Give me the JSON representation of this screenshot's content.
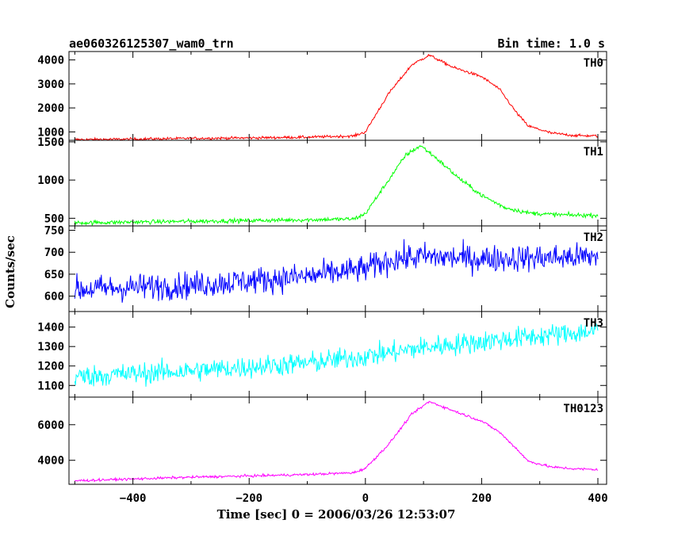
{
  "chart_data": {
    "type": "line",
    "title_left": "ae060326125307_wam0_trn",
    "title_right": "Bin time: 1.0 s",
    "xlabel": "Time [sec] 0 = 2006/03/26 12:53:07",
    "ylabel": "Counts/sec",
    "xlim": [
      -510,
      415
    ],
    "xticks": [
      -400,
      -200,
      0,
      200,
      400
    ],
    "xtick_labels": [
      "−400",
      "−200",
      "0",
      "200",
      "400"
    ],
    "panels": [
      {
        "name": "TH0",
        "color": "#ff0000",
        "ylim": [
          650,
          4350
        ],
        "yticks": [
          1000,
          2000,
          3000,
          4000
        ],
        "ytick_labels": [
          "1000",
          "2000",
          "3000",
          "4000"
        ],
        "noise": 40,
        "x": [
          -500,
          -400,
          -300,
          -200,
          -100,
          -20,
          0,
          40,
          80,
          110,
          150,
          200,
          230,
          260,
          280,
          320,
          360,
          400
        ],
        "values": [
          680,
          700,
          730,
          750,
          780,
          830,
          1000,
          2600,
          3800,
          4200,
          3700,
          3300,
          2800,
          1800,
          1250,
          950,
          850,
          830
        ]
      },
      {
        "name": "TH1",
        "color": "#00ff00",
        "ylim": [
          400,
          1520
        ],
        "yticks": [
          500,
          1000,
          1500
        ],
        "ytick_labels": [
          "500",
          "1000",
          "1500"
        ],
        "noise": 20,
        "x": [
          -500,
          -400,
          -300,
          -200,
          -100,
          -20,
          0,
          40,
          70,
          95,
          120,
          160,
          200,
          240,
          280,
          320,
          360,
          400
        ],
        "values": [
          440,
          450,
          460,
          470,
          480,
          490,
          560,
          1000,
          1330,
          1450,
          1300,
          1030,
          800,
          640,
          570,
          550,
          540,
          540
        ]
      },
      {
        "name": "TH2",
        "color": "#0000ff",
        "ylim": [
          565,
          760
        ],
        "yticks": [
          600,
          650,
          700,
          750
        ],
        "ytick_labels": [
          "600",
          "650",
          "700",
          "750"
        ],
        "noise": 22,
        "x": [
          -500,
          -300,
          -100,
          0,
          50,
          100,
          200,
          400
        ],
        "values": [
          615,
          625,
          645,
          662,
          685,
          690,
          685,
          690
        ]
      },
      {
        "name": "TH3",
        "color": "#00ffff",
        "ylim": [
          1040,
          1480
        ],
        "yticks": [
          1100,
          1200,
          1300,
          1400
        ],
        "ytick_labels": [
          "1100",
          "1200",
          "1300",
          "1400"
        ],
        "noise": 40,
        "x": [
          -500,
          -300,
          -100,
          0,
          100,
          200,
          300,
          400
        ],
        "values": [
          1145,
          1175,
          1215,
          1250,
          1295,
          1325,
          1355,
          1380
        ]
      },
      {
        "name": "TH0123",
        "color": "#ff00ff",
        "ylim": [
          2650,
          7550
        ],
        "yticks": [
          4000,
          6000
        ],
        "ytick_labels": [
          "4000",
          "6000"
        ],
        "noise": 50,
        "x": [
          -500,
          -400,
          -300,
          -200,
          -100,
          -20,
          0,
          40,
          80,
          110,
          150,
          200,
          230,
          260,
          280,
          320,
          360,
          400
        ],
        "values": [
          2850,
          2950,
          3050,
          3120,
          3200,
          3300,
          3550,
          4900,
          6600,
          7300,
          6800,
          6200,
          5600,
          4650,
          3950,
          3620,
          3520,
          3480
        ]
      }
    ]
  }
}
